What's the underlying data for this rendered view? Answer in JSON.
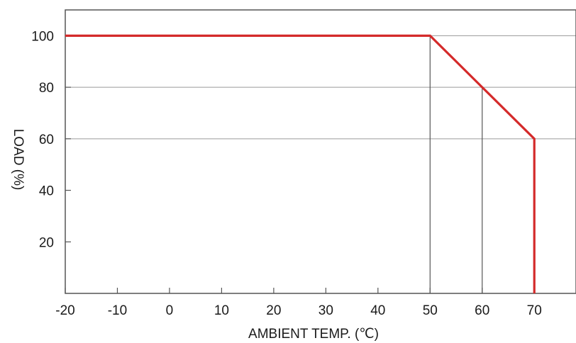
{
  "chart_data": {
    "type": "line",
    "xlabel": "AMBIENT TEMP. (℃)",
    "ylabel": "LOAD (%)",
    "xlim": [
      -20,
      78
    ],
    "ylim": [
      0,
      110
    ],
    "x_ticks": [
      -20,
      -10,
      0,
      10,
      20,
      30,
      40,
      50,
      60,
      70
    ],
    "y_ticks": [
      20,
      40,
      60,
      80,
      100
    ],
    "grid_y": [
      60,
      80,
      100
    ],
    "reference_lines": [
      {
        "x": 50,
        "y": 100
      },
      {
        "x": 60,
        "y": 80
      },
      {
        "x": 70,
        "y": 60
      }
    ],
    "series": [
      {
        "x": [
          -20,
          50,
          60,
          70,
          70
        ],
        "y": [
          100,
          100,
          80,
          60,
          0
        ],
        "color": "#d42a2a"
      }
    ],
    "grid": true,
    "legend": "none"
  }
}
